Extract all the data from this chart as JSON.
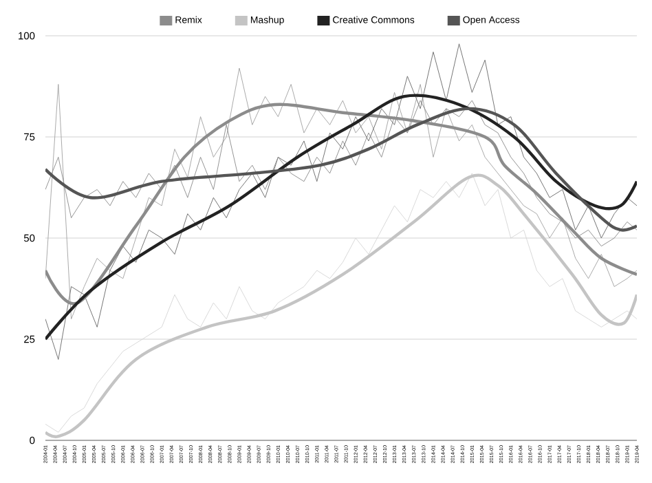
{
  "chart_data": {
    "type": "line",
    "legend": "top",
    "grid": "y",
    "ylim": [
      0,
      100
    ],
    "yticks": [
      0,
      25,
      50,
      75,
      100
    ],
    "xlim": [
      "2004-01",
      "2019-04"
    ],
    "xticks": [
      "2004-01",
      "2004-04",
      "2004-07",
      "2004-10",
      "2005-01",
      "2005-04",
      "2005-07",
      "2005-10",
      "2006-01",
      "2006-04",
      "2006-07",
      "2006-10",
      "2007-01",
      "2007-04",
      "2007-07",
      "2007-10",
      "2008-01",
      "2008-04",
      "2008-07",
      "2008-10",
      "2009-01",
      "2009-04",
      "2009-07",
      "2009-10",
      "2010-01",
      "2010-04",
      "2010-07",
      "2010-10",
      "2011-01",
      "2011-04",
      "2011-07",
      "2011-10",
      "2012-01",
      "2012-04",
      "2012-07",
      "2012-10",
      "2013-01",
      "2013-04",
      "2013-07",
      "2013-10",
      "2014-01",
      "2014-04",
      "2014-07",
      "2014-10",
      "2015-01",
      "2015-04",
      "2015-07",
      "2015-10",
      "2016-01",
      "2016-04",
      "2016-07",
      "2016-10",
      "2017-01",
      "2017-04",
      "2017-07",
      "2017-10",
      "2018-01",
      "2018-04",
      "2018-07",
      "2018-10",
      "2019-01",
      "2019-04"
    ],
    "x": [
      "2004-01",
      "2004-05",
      "2004-09",
      "2005-01",
      "2005-05",
      "2005-09",
      "2006-01",
      "2006-05",
      "2006-09",
      "2007-01",
      "2007-05",
      "2007-09",
      "2008-01",
      "2008-05",
      "2008-09",
      "2009-01",
      "2009-05",
      "2009-09",
      "2010-01",
      "2010-05",
      "2010-09",
      "2011-01",
      "2011-05",
      "2011-09",
      "2012-01",
      "2012-05",
      "2012-09",
      "2013-01",
      "2013-05",
      "2013-09",
      "2014-01",
      "2014-05",
      "2014-09",
      "2015-01",
      "2015-05",
      "2015-09",
      "2016-01",
      "2016-05",
      "2016-09",
      "2017-01",
      "2017-05",
      "2017-09",
      "2018-01",
      "2018-05",
      "2018-09",
      "2019-01",
      "2019-04"
    ],
    "series": [
      {
        "color": "#a0a0a0",
        "values": [
          40,
          88,
          30,
          38,
          45,
          42,
          40,
          50,
          60,
          58,
          72,
          65,
          80,
          70,
          75,
          92,
          78,
          85,
          80,
          88,
          76,
          82,
          78,
          84,
          76,
          80,
          72,
          86,
          76,
          88,
          70,
          82,
          74,
          78,
          70,
          66,
          62,
          58,
          56,
          50,
          55,
          45,
          40,
          46,
          38,
          40,
          42
        ]
      },
      {
        "color": "#d4d4d4",
        "values": [
          4,
          2,
          6,
          8,
          14,
          18,
          22,
          24,
          26,
          28,
          36,
          30,
          28,
          34,
          30,
          38,
          32,
          30,
          34,
          36,
          38,
          42,
          40,
          44,
          50,
          46,
          52,
          58,
          54,
          62,
          60,
          64,
          60,
          66,
          58,
          62,
          50,
          52,
          42,
          38,
          40,
          32,
          30,
          28,
          30,
          32,
          30
        ]
      },
      {
        "color": "#666666",
        "values": [
          30,
          20,
          38,
          36,
          28,
          42,
          48,
          44,
          52,
          50,
          46,
          56,
          52,
          60,
          55,
          62,
          66,
          60,
          70,
          68,
          74,
          64,
          76,
          72,
          80,
          74,
          82,
          78,
          90,
          82,
          96,
          84,
          98,
          86,
          94,
          78,
          80,
          70,
          66,
          60,
          62,
          52,
          58,
          50,
          56,
          60,
          58
        ]
      },
      {
        "color": "#888888",
        "values": [
          62,
          70,
          55,
          60,
          62,
          58,
          64,
          60,
          66,
          62,
          68,
          60,
          70,
          62,
          78,
          64,
          68,
          62,
          70,
          66,
          64,
          70,
          66,
          74,
          68,
          76,
          70,
          80,
          76,
          84,
          78,
          82,
          80,
          84,
          78,
          76,
          70,
          66,
          60,
          56,
          54,
          50,
          52,
          48,
          50,
          54,
          52
        ]
      },
      {
        "name": "Remix",
        "color": "#8c8c8c",
        "x": [
          "2004-01",
          "2004-11",
          "2006-05",
          "2007-08",
          "2008-10",
          "2009-12",
          "2011-09",
          "2013-07",
          "2015-05",
          "2015-11",
          "2016-09",
          "2017-08",
          "2018-05",
          "2019-04"
        ],
        "values": [
          42,
          34,
          53,
          70,
          79,
          83,
          81,
          79,
          75,
          68,
          61,
          52,
          45,
          41
        ]
      },
      {
        "name": "Mashup",
        "color": "#c4c4c4",
        "x": [
          "2004-01",
          "2004-05",
          "2005-01",
          "2006-05",
          "2008-03",
          "2009-12",
          "2011-09",
          "2013-07",
          "2014-12",
          "2015-09",
          "2016-06",
          "2017-08",
          "2018-05",
          "2018-12",
          "2019-04"
        ],
        "values": [
          2,
          1,
          5,
          20,
          28,
          32,
          41,
          54,
          65,
          63,
          55,
          41,
          31,
          29,
          36
        ]
      },
      {
        "name": "Creative Commons",
        "color": "#222222",
        "x": [
          "2004-01",
          "2005-03",
          "2007-01",
          "2008-10",
          "2010-07",
          "2011-12",
          "2013-04",
          "2014-09",
          "2016-02",
          "2017-03",
          "2018-03",
          "2018-11",
          "2019-04"
        ],
        "values": [
          25,
          37,
          49,
          58,
          70,
          78,
          85,
          83,
          75,
          64,
          58,
          58,
          64
        ]
      },
      {
        "name": "Open Access",
        "color": "#555555",
        "x": [
          "2004-01",
          "2005-03",
          "2007-01",
          "2009-05",
          "2011-02",
          "2012-05",
          "2013-08",
          "2014-12",
          "2016-02",
          "2017-03",
          "2018-05",
          "2018-11",
          "2019-04"
        ],
        "values": [
          67,
          60,
          64,
          66,
          68,
          72,
          78,
          82,
          78,
          66,
          55,
          52,
          53
        ]
      }
    ]
  }
}
